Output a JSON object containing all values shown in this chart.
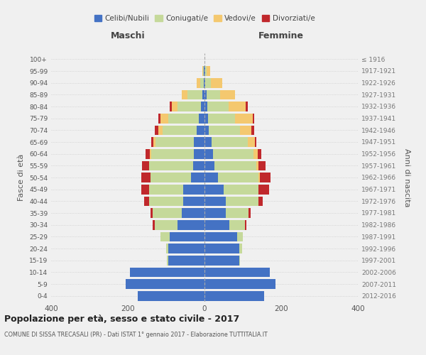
{
  "age_groups": [
    "0-4",
    "5-9",
    "10-14",
    "15-19",
    "20-24",
    "25-29",
    "30-34",
    "35-39",
    "40-44",
    "45-49",
    "50-54",
    "55-59",
    "60-64",
    "65-69",
    "70-74",
    "75-79",
    "80-84",
    "85-89",
    "90-94",
    "95-99",
    "100+"
  ],
  "birth_years": [
    "2012-2016",
    "2007-2011",
    "2002-2006",
    "1997-2001",
    "1992-1996",
    "1987-1991",
    "1982-1986",
    "1977-1981",
    "1972-1976",
    "1967-1971",
    "1962-1966",
    "1957-1961",
    "1952-1956",
    "1947-1951",
    "1942-1946",
    "1937-1941",
    "1932-1936",
    "1927-1931",
    "1922-1926",
    "1917-1921",
    "≤ 1916"
  ],
  "male": {
    "celibi": [
      175,
      205,
      195,
      95,
      95,
      90,
      70,
      60,
      55,
      55,
      35,
      30,
      28,
      28,
      20,
      15,
      10,
      5,
      2,
      1,
      0
    ],
    "coniugati": [
      0,
      0,
      0,
      3,
      5,
      25,
      60,
      75,
      90,
      90,
      105,
      115,
      110,
      100,
      90,
      80,
      60,
      40,
      10,
      2,
      0
    ],
    "vedovi": [
      0,
      0,
      0,
      0,
      0,
      0,
      0,
      0,
      0,
      0,
      0,
      0,
      5,
      5,
      10,
      20,
      15,
      15,
      8,
      3,
      0
    ],
    "divorziati": [
      0,
      0,
      0,
      0,
      0,
      0,
      5,
      5,
      12,
      20,
      25,
      18,
      10,
      5,
      10,
      5,
      5,
      0,
      0,
      0,
      0
    ]
  },
  "female": {
    "nubili": [
      155,
      185,
      170,
      90,
      90,
      85,
      65,
      55,
      55,
      50,
      35,
      25,
      22,
      18,
      12,
      10,
      8,
      5,
      2,
      1,
      0
    ],
    "coniugate": [
      0,
      0,
      0,
      2,
      8,
      15,
      40,
      60,
      85,
      90,
      105,
      110,
      105,
      95,
      80,
      70,
      55,
      35,
      15,
      5,
      0
    ],
    "vedove": [
      0,
      0,
      0,
      0,
      0,
      0,
      0,
      0,
      0,
      0,
      5,
      5,
      12,
      18,
      30,
      45,
      45,
      40,
      30,
      8,
      0
    ],
    "divorziate": [
      0,
      0,
      0,
      0,
      0,
      0,
      5,
      5,
      12,
      28,
      28,
      20,
      10,
      5,
      8,
      5,
      5,
      0,
      0,
      0,
      0
    ]
  },
  "colors": {
    "celibi_nubili": "#4472C4",
    "coniugati": "#C5D99A",
    "vedovi": "#F4C86F",
    "divorziati": "#C0282C"
  },
  "title": "Popolazione per età, sesso e stato civile - 2017",
  "subtitle": "COMUNE DI SISSA TRECASALI (PR) - Dati ISTAT 1° gennaio 2017 - Elaborazione TUTTITALIA.IT",
  "xlabel_left": "Maschi",
  "xlabel_right": "Femmine",
  "ylabel_left": "Fasce di età",
  "ylabel_right": "Anni di nascita",
  "xlim": 400,
  "background_color": "#f0f0f0",
  "legend_labels": [
    "Celibi/Nubili",
    "Coniugati/e",
    "Vedovi/e",
    "Divorziati/e"
  ]
}
